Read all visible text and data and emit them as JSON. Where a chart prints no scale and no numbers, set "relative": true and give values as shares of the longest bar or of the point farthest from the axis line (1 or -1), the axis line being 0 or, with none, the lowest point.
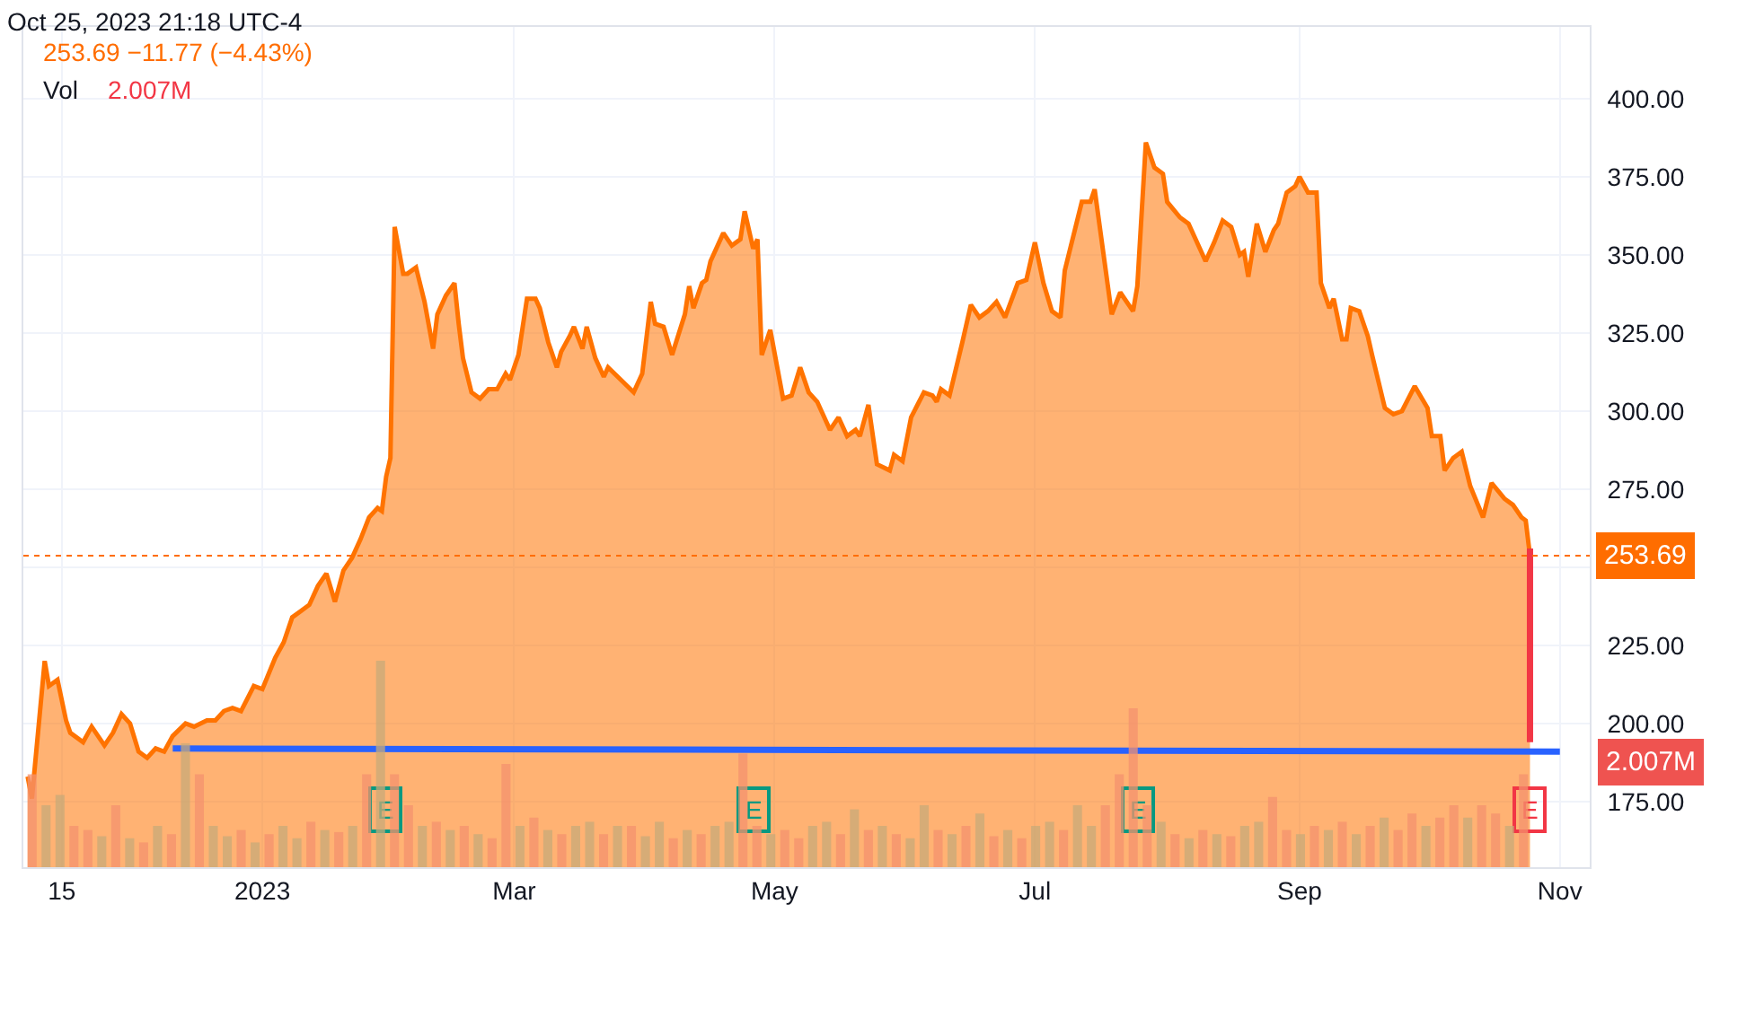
{
  "chart_data": [
    {
      "type": "area",
      "title": "253.69 −11.77 (−4.43%)",
      "annotations": [
        "Oct 25, 2023 21:18 UTC-4",
        {
          "text": "E",
          "x": "2023-01-30"
        },
        {
          "text": "E",
          "x": "2023-04-26"
        },
        {
          "text": "E",
          "x": "2023-07-25"
        },
        {
          "text": "E",
          "x": "2023-10-25"
        }
      ],
      "xlim": [
        "2022-11-06",
        "2023-11-08"
      ],
      "xticks": [
        {
          "value": "2022-11-15",
          "label": "15"
        },
        {
          "value": "2023-01-01",
          "label": "2023"
        },
        {
          "value": "2023-03-01",
          "label": "Mar"
        },
        {
          "value": "2023-05-01",
          "label": "May"
        },
        {
          "value": "2023-07-01",
          "label": "Jul"
        },
        {
          "value": "2023-09-01",
          "label": "Sep"
        },
        {
          "value": "2023-11-01",
          "label": "Nov"
        }
      ],
      "ylim": [
        154,
        423
      ],
      "yticks": [
        {
          "value": 175,
          "label": "175.00"
        },
        {
          "value": 200,
          "label": "200.00"
        },
        {
          "value": 225,
          "label": "225.00"
        },
        {
          "value": 250,
          "label": null
        },
        {
          "value": 275,
          "label": "275.00"
        },
        {
          "value": 300,
          "label": "300.00"
        },
        {
          "value": 325,
          "label": "325.00"
        },
        {
          "value": 350,
          "label": "350.00"
        },
        {
          "value": 375,
          "label": "375.00"
        },
        {
          "value": 400,
          "label": "400.00"
        }
      ],
      "grid": true,
      "ref_lines": [
        {
          "axis": "y",
          "value": 253.69,
          "label": "253.69",
          "color": "#ff6d00",
          "line_style": "dotted"
        }
      ],
      "series": [
        {
          "type": "area",
          "color": "#ff7300",
          "x": [
            "2022-11-07",
            "2022-11-08",
            "2022-11-11",
            "2022-11-12",
            "2022-11-14",
            "2022-11-16",
            "2022-11-17",
            "2022-11-20",
            "2022-11-22",
            "2022-11-25",
            "2022-11-27",
            "2022-11-29",
            "2022-12-01",
            "2022-12-03",
            "2022-12-05",
            "2022-12-07",
            "2022-12-09",
            "2022-12-11",
            "2022-12-14",
            "2022-12-16",
            "2022-12-19",
            "2022-12-21",
            "2022-12-23",
            "2022-12-25",
            "2022-12-27",
            "2022-12-30",
            "2023-01-01",
            "2023-01-04",
            "2023-01-06",
            "2023-01-08",
            "2023-01-10",
            "2023-01-12",
            "2023-01-14",
            "2023-01-16",
            "2023-01-18",
            "2023-01-20",
            "2023-01-22",
            "2023-01-24",
            "2023-01-26",
            "2023-01-28",
            "2023-01-29",
            "2023-01-30",
            "2023-01-31",
            "2023-02-01",
            "2023-02-03",
            "2023-02-04",
            "2023-02-06",
            "2023-02-08",
            "2023-02-10",
            "2023-02-11",
            "2023-02-13",
            "2023-02-15",
            "2023-02-16",
            "2023-02-17",
            "2023-02-19",
            "2023-02-21",
            "2023-02-23",
            "2023-02-25",
            "2023-02-27",
            "2023-02-28",
            "2023-03-02",
            "2023-03-04",
            "2023-03-06",
            "2023-03-07",
            "2023-03-09",
            "2023-03-11",
            "2023-03-12",
            "2023-03-14",
            "2023-03-15",
            "2023-03-17",
            "2023-03-18",
            "2023-03-20",
            "2023-03-22",
            "2023-03-23",
            "2023-03-29",
            "2023-03-31",
            "2023-04-02",
            "2023-04-03",
            "2023-04-05",
            "2023-04-07",
            "2023-04-10",
            "2023-04-11",
            "2023-04-12",
            "2023-04-14",
            "2023-04-15",
            "2023-04-16",
            "2023-04-19",
            "2023-04-21",
            "2023-04-23",
            "2023-04-24",
            "2023-04-26",
            "2023-04-27",
            "2023-04-28",
            "2023-04-30",
            "2023-05-03",
            "2023-05-05",
            "2023-05-07",
            "2023-05-09",
            "2023-05-11",
            "2023-05-13",
            "2023-05-14",
            "2023-05-16",
            "2023-05-18",
            "2023-05-20",
            "2023-05-21",
            "2023-05-23",
            "2023-05-25",
            "2023-05-28",
            "2023-05-29",
            "2023-05-31",
            "2023-06-02",
            "2023-06-05",
            "2023-06-07",
            "2023-06-08",
            "2023-06-09",
            "2023-06-11",
            "2023-06-14",
            "2023-06-16",
            "2023-06-18",
            "2023-06-20",
            "2023-06-22",
            "2023-06-24",
            "2023-06-27",
            "2023-06-29",
            "2023-07-01",
            "2023-07-03",
            "2023-07-05",
            "2023-07-07",
            "2023-07-08",
            "2023-07-12",
            "2023-07-14",
            "2023-07-15",
            "2023-07-19",
            "2023-07-21",
            "2023-07-24",
            "2023-07-25",
            "2023-07-27",
            "2023-07-29",
            "2023-07-31",
            "2023-08-01",
            "2023-08-04",
            "2023-08-06",
            "2023-08-10",
            "2023-08-12",
            "2023-08-14",
            "2023-08-16",
            "2023-08-18",
            "2023-08-19",
            "2023-08-20",
            "2023-08-22",
            "2023-08-24",
            "2023-08-26",
            "2023-08-27",
            "2023-08-29",
            "2023-08-31",
            "2023-09-01",
            "2023-09-03",
            "2023-09-05",
            "2023-09-06",
            "2023-09-08",
            "2023-09-09",
            "2023-09-11",
            "2023-09-12",
            "2023-09-13",
            "2023-09-15",
            "2023-09-17",
            "2023-09-18",
            "2023-09-21",
            "2023-09-23",
            "2023-09-25",
            "2023-09-28",
            "2023-10-01",
            "2023-10-02",
            "2023-10-04",
            "2023-10-05",
            "2023-10-07",
            "2023-10-09",
            "2023-10-11",
            "2023-10-14",
            "2023-10-16",
            "2023-10-19",
            "2023-10-21",
            "2023-10-23",
            "2023-10-24",
            "2023-10-25"
          ],
          "values": [
            183,
            176,
            220,
            212,
            214,
            201,
            197,
            194,
            199,
            193,
            197,
            203,
            200,
            191,
            189,
            192,
            191,
            196,
            200,
            199,
            201,
            201,
            204,
            205,
            204,
            212,
            211,
            221,
            226,
            234,
            236,
            238,
            244,
            248,
            239,
            249,
            253,
            259,
            266,
            269,
            268,
            279,
            285,
            359,
            344,
            344,
            346,
            335,
            320,
            331,
            337,
            341,
            328,
            317,
            306,
            304,
            307,
            307,
            312,
            310,
            318,
            336,
            336,
            333,
            322,
            314,
            319,
            324,
            327,
            320,
            327,
            317,
            311,
            314,
            306,
            312,
            335,
            328,
            327,
            318,
            331,
            340,
            333,
            341,
            342,
            348,
            357,
            353,
            355,
            364,
            352,
            355,
            318,
            326,
            304,
            305,
            314,
            306,
            303,
            297,
            294,
            298,
            292,
            294,
            292,
            302,
            283,
            281,
            286,
            284,
            298,
            306,
            305,
            303,
            307,
            305,
            322,
            334,
            330,
            332,
            335,
            330,
            341,
            342,
            354,
            341,
            332,
            330,
            345,
            367,
            367,
            371,
            331,
            338,
            332,
            340,
            386,
            378,
            376,
            367,
            362,
            360,
            348,
            354,
            361,
            359,
            350,
            351,
            343,
            360,
            351,
            358,
            360,
            370,
            372,
            375,
            370,
            370,
            341,
            333,
            336,
            323,
            323,
            333,
            332,
            324,
            318,
            301,
            299,
            300,
            308,
            301,
            292,
            292,
            281,
            285,
            287,
            276,
            266,
            277,
            272,
            270,
            266,
            265,
            253.69
          ]
        },
        {
          "type": "line",
          "color": "#2962ff",
          "x": [
            "2022-12-11",
            "2023-11-01"
          ],
          "values": [
            192,
            191
          ]
        },
        {
          "type": "line",
          "color": "#f23645",
          "x": [
            "2023-10-25",
            "2023-10-25"
          ],
          "values": [
            256,
            194
          ]
        }
      ]
    },
    {
      "type": "bar",
      "relative": true,
      "title": "Vol",
      "annotations": [
        "2.007M",
        "2.007M"
      ],
      "categories": [
        null,
        null,
        null,
        null,
        null,
        null,
        null,
        null,
        null,
        null,
        null,
        null,
        null,
        null,
        null,
        null,
        null,
        null,
        null,
        null,
        null,
        null,
        null,
        null,
        null,
        null,
        null,
        null,
        null,
        null,
        null,
        null,
        null,
        null,
        null,
        null,
        null,
        null,
        null,
        null,
        null,
        null,
        null,
        null,
        null,
        null,
        null,
        null,
        null,
        null,
        null,
        null,
        null,
        null,
        null,
        null,
        null,
        null,
        null,
        null,
        null,
        null,
        null,
        null,
        null,
        null,
        null,
        null,
        null,
        null,
        null,
        null,
        null,
        null,
        null,
        null,
        null,
        null,
        null,
        null,
        null,
        null,
        null,
        null,
        null,
        null,
        null,
        null,
        null,
        null,
        null,
        null,
        null,
        null,
        null,
        null,
        null,
        null,
        null,
        null,
        null,
        null,
        null,
        null,
        null,
        null,
        null,
        null
      ],
      "values": [
        0.45,
        0.3,
        0.35,
        0.2,
        0.18,
        0.15,
        0.3,
        0.14,
        0.12,
        0.2,
        0.16,
        0.6,
        0.45,
        0.2,
        0.15,
        0.18,
        0.12,
        0.16,
        0.2,
        0.14,
        0.22,
        0.18,
        0.17,
        0.2,
        0.45,
        1.0,
        0.45,
        0.3,
        0.2,
        0.22,
        0.18,
        0.2,
        0.16,
        0.14,
        0.5,
        0.2,
        0.24,
        0.18,
        0.16,
        0.2,
        0.22,
        0.16,
        0.2,
        0.2,
        0.15,
        0.22,
        0.14,
        0.18,
        0.16,
        0.2,
        0.22,
        0.55,
        0.2,
        0.16,
        0.18,
        0.14,
        0.2,
        0.22,
        0.16,
        0.28,
        0.18,
        0.2,
        0.16,
        0.14,
        0.3,
        0.18,
        0.16,
        0.2,
        0.26,
        0.15,
        0.18,
        0.14,
        0.2,
        0.22,
        0.18,
        0.3,
        0.2,
        0.3,
        0.45,
        0.77,
        0.3,
        0.22,
        0.16,
        0.14,
        0.18,
        0.16,
        0.15,
        0.2,
        0.22,
        0.34,
        0.18,
        0.16,
        0.2,
        0.18,
        0.22,
        0.16,
        0.2,
        0.24,
        0.18,
        0.26,
        0.2,
        0.24,
        0.3,
        0.24,
        0.3,
        0.26,
        0.2,
        0.45
      ],
      "colors": [
        "#f4916e",
        "#c8aa78",
        "#c8aa78",
        "#f4916e",
        "#f4916e",
        "#c8aa78",
        "#f4916e",
        "#c8aa78",
        "#f4916e",
        "#c8aa78",
        "#f4916e",
        "#c8aa78",
        "#f4916e",
        "#c8aa78",
        "#c8aa78",
        "#f4916e",
        "#c8aa78",
        "#f4916e",
        "#c8aa78",
        "#c8aa78",
        "#f4916e",
        "#c8aa78",
        "#f4916e",
        "#c8aa78",
        "#f4916e",
        "#c8aa78",
        "#f4916e",
        "#f4916e",
        "#c8aa78",
        "#f4916e",
        "#c8aa78",
        "#f4916e",
        "#c8aa78",
        "#f4916e",
        "#f4916e",
        "#c8aa78",
        "#f4916e",
        "#c8aa78",
        "#f4916e",
        "#c8aa78",
        "#c8aa78",
        "#f4916e",
        "#c8aa78",
        "#f4916e",
        "#c8aa78",
        "#c8aa78",
        "#f4916e",
        "#c8aa78",
        "#f4916e",
        "#c8aa78",
        "#c8aa78",
        "#f4916e",
        "#f4916e",
        "#c8aa78",
        "#f4916e",
        "#f4916e",
        "#c8aa78",
        "#c8aa78",
        "#f4916e",
        "#c8aa78",
        "#f4916e",
        "#c8aa78",
        "#f4916e",
        "#c8aa78",
        "#c8aa78",
        "#f4916e",
        "#c8aa78",
        "#f4916e",
        "#c8aa78",
        "#f4916e",
        "#c8aa78",
        "#f4916e",
        "#c8aa78",
        "#c8aa78",
        "#f4916e",
        "#c8aa78",
        "#c8aa78",
        "#f4916e",
        "#f4916e",
        "#f4916e",
        "#f4916e",
        "#c8aa78",
        "#f4916e",
        "#c8aa78",
        "#f4916e",
        "#c8aa78",
        "#f4916e",
        "#c8aa78",
        "#c8aa78",
        "#f4916e",
        "#f4916e",
        "#c8aa78",
        "#f4916e",
        "#c8aa78",
        "#f4916e",
        "#c8aa78",
        "#f4916e",
        "#c8aa78",
        "#f4916e",
        "#f4916e",
        "#c8aa78",
        "#f4916e",
        "#f4916e",
        "#c8aa78",
        "#f4916e",
        "#f4916e",
        "#c8aa78",
        "#f4916e"
      ]
    }
  ]
}
